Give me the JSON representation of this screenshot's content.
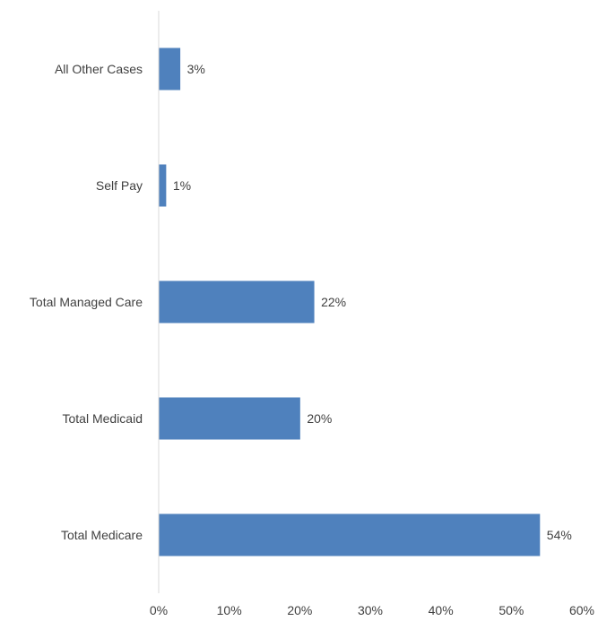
{
  "chart_data": {
    "type": "bar",
    "orientation": "horizontal",
    "title": "",
    "xlabel": "",
    "ylabel": "",
    "categories": [
      "All Other Cases",
      "Self Pay",
      "Total Managed Care",
      "Total Medicaid",
      "Total Medicare"
    ],
    "values": [
      3,
      1,
      22,
      20,
      54
    ],
    "value_labels": [
      "3%",
      "1%",
      "22%",
      "20%",
      "54%"
    ],
    "value_unit": "%",
    "xlim": [
      0,
      60
    ],
    "x_ticks": [
      0,
      10,
      20,
      30,
      40,
      50,
      60
    ],
    "x_tick_labels": [
      "0%",
      "10%",
      "20%",
      "30%",
      "40%",
      "50%",
      "60%"
    ],
    "grid": false,
    "legend": "none",
    "bar_color": "#4F81BD",
    "axis_color": "#D9D9D9"
  }
}
